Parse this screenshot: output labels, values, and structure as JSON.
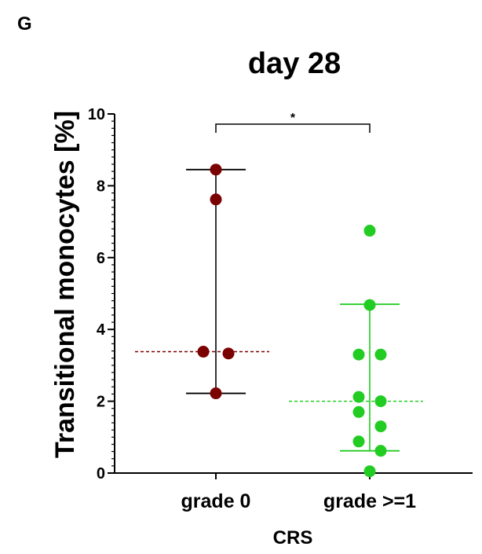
{
  "panel_label": "G",
  "chart_data": {
    "type": "scatter",
    "title": "day 28",
    "xlabel": "CRS",
    "ylabel": "Transitional monocytes [%]",
    "ylim": [
      0,
      10
    ],
    "yticks": [
      0,
      2,
      4,
      6,
      8,
      10
    ],
    "y_minor_step": 0.2,
    "categories": [
      "grade 0",
      "grade >=1"
    ],
    "series": [
      {
        "category": "grade 0",
        "color": "#7b0000",
        "points": [
          8.45,
          7.62,
          3.38,
          3.33,
          2.22
        ],
        "median": 3.38,
        "whisker": [
          2.22,
          8.45
        ]
      },
      {
        "category": "grade >=1",
        "color": "#22cc22",
        "points": [
          6.75,
          4.68,
          3.3,
          3.3,
          2.12,
          2.0,
          1.7,
          1.3,
          0.88,
          0.62,
          0.05
        ],
        "median": 2.0,
        "whisker": [
          0.62,
          4.7
        ]
      }
    ],
    "significance": {
      "label": "*",
      "between": [
        "grade 0",
        "grade >=1"
      ],
      "y": 10.0
    },
    "grid": false,
    "legend": "none"
  }
}
